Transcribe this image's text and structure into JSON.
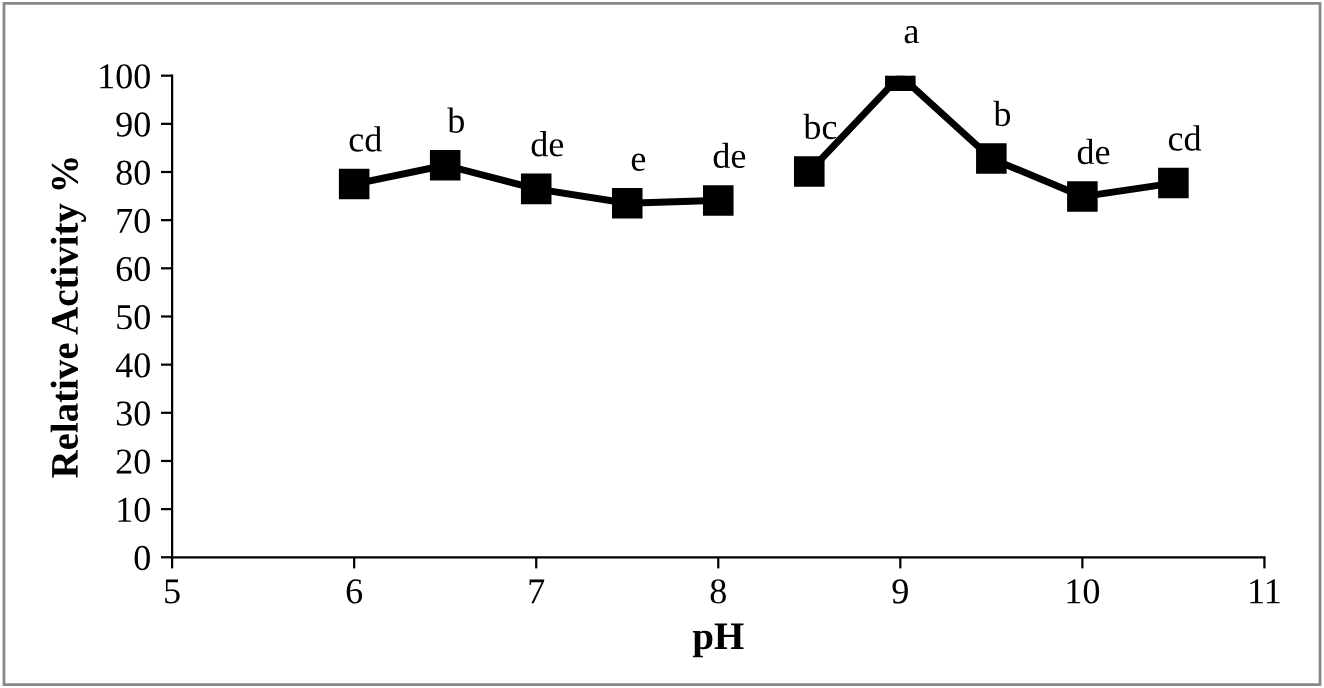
{
  "chart_data": {
    "type": "line",
    "xlabel": "pH",
    "ylabel": "Relative Activity %",
    "xlim": [
      5,
      11
    ],
    "xticks": [
      5,
      6,
      7,
      8,
      9,
      10,
      11
    ],
    "ylim": [
      0,
      100
    ],
    "yticks": [
      0,
      10,
      20,
      30,
      40,
      50,
      60,
      70,
      80,
      90,
      100
    ],
    "marker": "square",
    "line_style": "solid",
    "grid": false,
    "legend": false,
    "series": [
      {
        "color": "#000000",
        "x": [
          6,
          6.5,
          7,
          7.5,
          8
        ],
        "values": [
          77.5,
          81.4,
          76.5,
          73.5,
          74.1
        ]
      },
      {
        "color": "#000000",
        "x": [
          8.5,
          9,
          9.5,
          10,
          10.5
        ],
        "values": [
          80.1,
          100,
          82.8,
          74.9,
          77.7
        ]
      }
    ],
    "annotations": [
      {
        "text": "cd",
        "x": 6,
        "y": 77.5
      },
      {
        "text": "b",
        "x": 6.5,
        "y": 81.4
      },
      {
        "text": "de",
        "x": 7,
        "y": 76.5
      },
      {
        "text": "e",
        "x": 7.5,
        "y": 73.5
      },
      {
        "text": "de",
        "x": 8,
        "y": 74.1
      },
      {
        "text": "bc",
        "x": 8.5,
        "y": 80.1
      },
      {
        "text": "a",
        "x": 9,
        "y": 100
      },
      {
        "text": "b",
        "x": 9.5,
        "y": 82.8
      },
      {
        "text": "de",
        "x": 10,
        "y": 74.9
      },
      {
        "text": "cd",
        "x": 10.5,
        "y": 77.7
      }
    ]
  }
}
